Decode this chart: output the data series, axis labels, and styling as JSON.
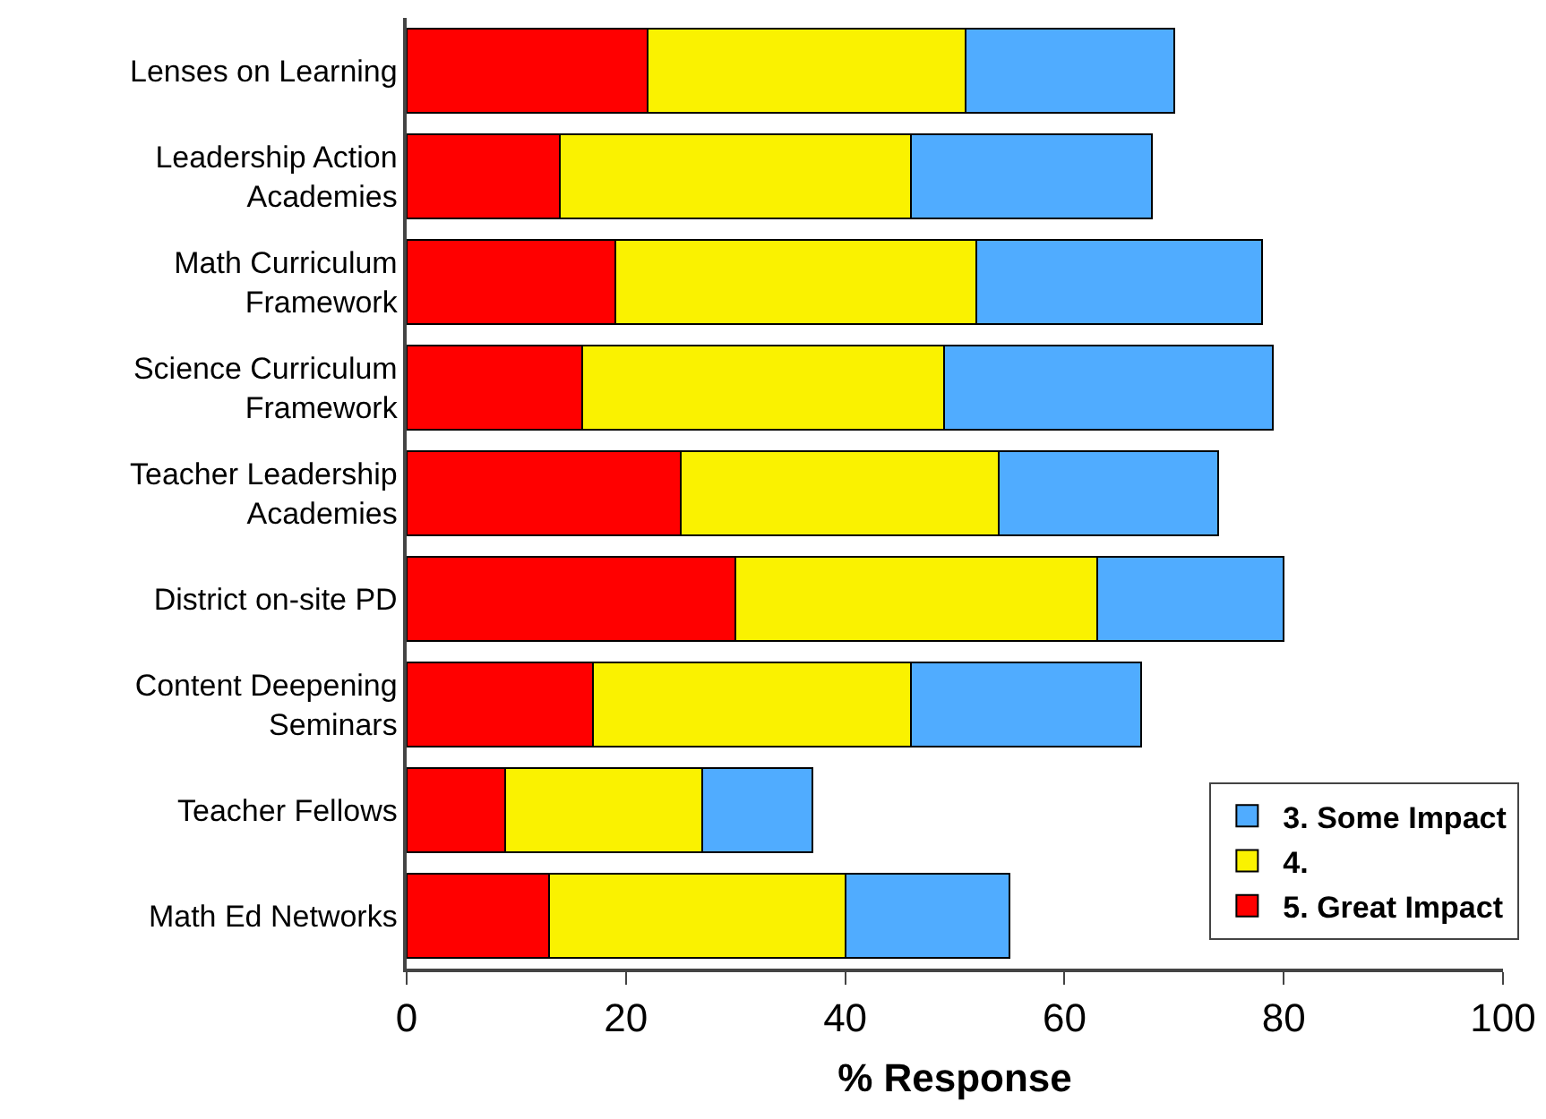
{
  "chart_data": {
    "type": "bar",
    "orientation": "horizontal",
    "stacked": true,
    "categories": [
      "Lenses on Learning",
      "Leadership Action Academies",
      "Math Curriculum Framework",
      "Science Curriculum Framework",
      "Teacher Leadership Academies",
      "District on-site PD",
      "Content Deepening Seminars",
      "Teacher Fellows",
      "Math Ed Networks"
    ],
    "series": [
      {
        "name": "5. Great Impact",
        "color": "#ff0000",
        "values": [
          22,
          14,
          19,
          16,
          25,
          30,
          17,
          9,
          13
        ]
      },
      {
        "name": "4.",
        "color": "#faf200",
        "values": [
          29,
          32,
          33,
          33,
          29,
          33,
          29,
          18,
          27
        ]
      },
      {
        "name": "3. Some Impact",
        "color": "#50acff",
        "values": [
          19,
          22,
          26,
          30,
          20,
          17,
          21,
          10,
          15
        ]
      }
    ],
    "xlabel": "% Response",
    "xlim": [
      0,
      100
    ],
    "xticks": [
      0,
      20,
      40,
      60,
      80,
      100
    ],
    "grid": false,
    "legend": "bottom right"
  }
}
